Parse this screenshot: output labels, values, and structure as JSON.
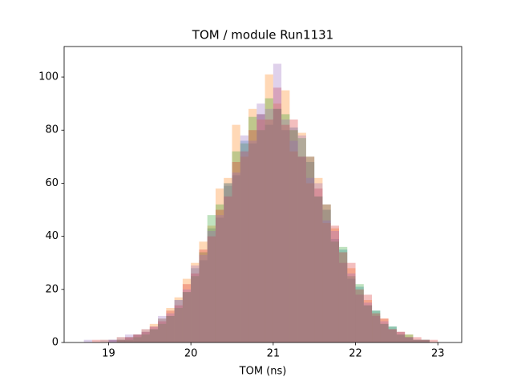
{
  "chart_data": {
    "type": "histogram",
    "title": "TOM / module Run1131",
    "xlabel": "TOM (ns)",
    "bins": [
      18.7,
      18.8,
      18.9,
      19.0,
      19.1,
      19.2,
      19.3,
      19.4,
      19.5,
      19.6,
      19.7,
      19.8,
      19.9,
      20.0,
      20.1,
      20.2,
      20.3,
      20.4,
      20.5,
      20.6,
      20.7,
      20.8,
      20.9,
      21.0,
      21.1,
      21.2,
      21.3,
      21.4,
      21.5,
      21.6,
      21.7,
      21.8,
      21.9,
      22.0,
      22.1,
      22.2,
      22.3,
      22.4,
      22.5,
      22.6,
      22.7,
      22.8,
      22.9,
      23.0,
      23.1
    ],
    "alpha": 0.3,
    "series": [
      {
        "color": "#1f77b4",
        "values": [
          0,
          0,
          0,
          1,
          1,
          2,
          3,
          4,
          5,
          9,
          10,
          16,
          19,
          28,
          31,
          43,
          47,
          59,
          63,
          76,
          75,
          86,
          82,
          88,
          80,
          81,
          70,
          68,
          55,
          50,
          39,
          35,
          24,
          21,
          14,
          12,
          7,
          6,
          3,
          2,
          1,
          1,
          0,
          0
        ]
      },
      {
        "color": "#ff7f0e",
        "values": [
          0,
          0,
          1,
          0,
          2,
          2,
          3,
          5,
          7,
          9,
          13,
          17,
          24,
          30,
          38,
          44,
          58,
          62,
          82,
          70,
          88,
          84,
          101,
          90,
          95,
          72,
          79,
          60,
          62,
          45,
          43,
          30,
          28,
          18,
          16,
          10,
          9,
          5,
          4,
          3,
          1,
          1,
          0,
          0
        ]
      },
      {
        "color": "#2ca02c",
        "values": [
          0,
          0,
          0,
          0,
          1,
          1,
          2,
          3,
          5,
          7,
          10,
          13,
          19,
          25,
          34,
          48,
          52,
          60,
          72,
          75,
          85,
          80,
          92,
          88,
          86,
          80,
          77,
          70,
          55,
          52,
          38,
          36,
          25,
          22,
          14,
          12,
          7,
          6,
          3,
          3,
          1,
          1,
          0,
          0
        ]
      },
      {
        "color": "#d62728",
        "values": [
          0,
          1,
          0,
          1,
          1,
          2,
          3,
          4,
          6,
          8,
          12,
          14,
          22,
          26,
          35,
          40,
          50,
          55,
          68,
          72,
          80,
          86,
          84,
          96,
          82,
          84,
          70,
          70,
          58,
          52,
          44,
          34,
          30,
          20,
          18,
          11,
          9,
          5,
          4,
          2,
          2,
          1,
          1,
          0
        ]
      },
      {
        "color": "#9467bd",
        "values": [
          1,
          0,
          1,
          1,
          2,
          3,
          3,
          5,
          6,
          10,
          11,
          16,
          20,
          29,
          33,
          42,
          48,
          60,
          64,
          78,
          76,
          90,
          88,
          105,
          84,
          76,
          78,
          62,
          60,
          46,
          42,
          30,
          26,
          18,
          15,
          10,
          8,
          5,
          4,
          2,
          1,
          1,
          0,
          0
        ]
      }
    ],
    "xlim": [
      18.46,
      23.29
    ],
    "ylim": [
      0,
      111.5
    ],
    "xticks": [
      19,
      20,
      21,
      22,
      23
    ],
    "yticks": [
      0,
      20,
      40,
      60,
      80,
      100
    ]
  }
}
